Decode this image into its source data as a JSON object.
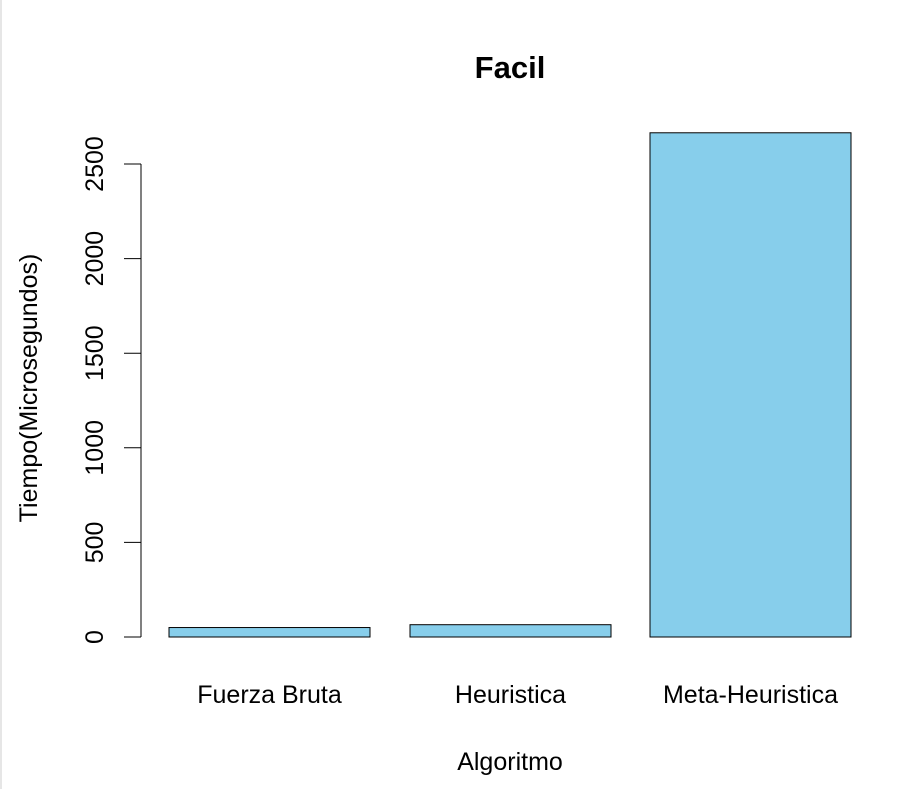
{
  "chart_data": {
    "type": "bar",
    "title": "Facil",
    "xlabel": "Algoritmo",
    "ylabel": "Tiempo(Microsegundos)",
    "categories": [
      "Fuerza Bruta",
      "Heuristica",
      "Meta-Heuristica"
    ],
    "values": [
      50,
      65,
      2665
    ],
    "ylim": [
      0,
      2500
    ],
    "yticks": [
      0,
      500,
      1000,
      1500,
      2000,
      2500
    ],
    "bar_color": "#87CEEB",
    "bar_border_color": "#000000",
    "grid": false,
    "legend": "none"
  }
}
